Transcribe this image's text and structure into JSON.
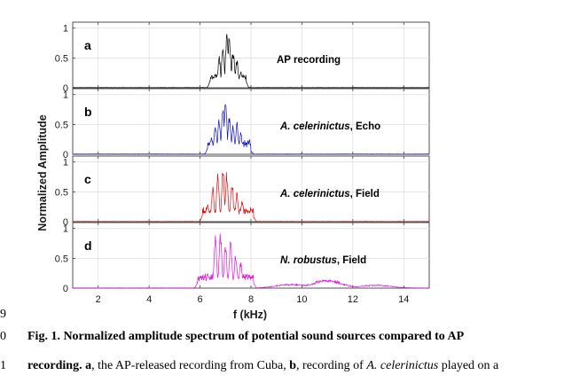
{
  "chart_data": {
    "type": "line",
    "ylabel": "Normalized Amplitude",
    "xlabel": "f (kHz)",
    "xlim": [
      1,
      15
    ],
    "ylim": [
      0,
      1.1
    ],
    "x_ticks": [
      "2",
      "4",
      "6",
      "8",
      "10",
      "12",
      "14"
    ],
    "y_ticks": [
      "0",
      "0.5",
      "1"
    ],
    "grid": true,
    "panels": [
      {
        "letter": "a",
        "label_italic": "",
        "label_rest": "AP recording",
        "color": "#000000",
        "peaks": [
          {
            "x": 6.4,
            "y": 0.12
          },
          {
            "x": 6.6,
            "y": 0.25
          },
          {
            "x": 6.75,
            "y": 0.55
          },
          {
            "x": 6.9,
            "y": 0.7
          },
          {
            "x": 7.05,
            "y": 0.93
          },
          {
            "x": 7.15,
            "y": 1.0
          },
          {
            "x": 7.3,
            "y": 0.68
          },
          {
            "x": 7.45,
            "y": 0.5
          },
          {
            "x": 7.6,
            "y": 0.28
          },
          {
            "x": 7.8,
            "y": 0.12
          }
        ]
      },
      {
        "letter": "b",
        "label_italic": "A. celerinictus",
        "label_rest": ", Echo",
        "color": "#1010c8",
        "peaks": [
          {
            "x": 6.3,
            "y": 0.1
          },
          {
            "x": 6.45,
            "y": 0.3
          },
          {
            "x": 6.6,
            "y": 0.48
          },
          {
            "x": 6.75,
            "y": 0.62
          },
          {
            "x": 6.9,
            "y": 0.85
          },
          {
            "x": 7.0,
            "y": 1.0
          },
          {
            "x": 7.15,
            "y": 0.7
          },
          {
            "x": 7.3,
            "y": 0.52
          },
          {
            "x": 7.45,
            "y": 0.55
          },
          {
            "x": 7.6,
            "y": 0.38
          },
          {
            "x": 7.8,
            "y": 0.16
          },
          {
            "x": 8.0,
            "y": 0.05
          }
        ]
      },
      {
        "letter": "c",
        "label_italic": "A. celerinictus",
        "label_rest": ", Field",
        "color": "#e01010",
        "peaks": [
          {
            "x": 6.1,
            "y": 0.1
          },
          {
            "x": 6.3,
            "y": 0.3
          },
          {
            "x": 6.5,
            "y": 0.6
          },
          {
            "x": 6.7,
            "y": 0.82
          },
          {
            "x": 6.9,
            "y": 0.97
          },
          {
            "x": 7.05,
            "y": 0.9
          },
          {
            "x": 7.25,
            "y": 0.72
          },
          {
            "x": 7.45,
            "y": 0.52
          },
          {
            "x": 7.65,
            "y": 0.36
          },
          {
            "x": 7.85,
            "y": 0.2
          },
          {
            "x": 8.1,
            "y": 0.08
          }
        ]
      },
      {
        "letter": "d",
        "label_italic": "N. robustus",
        "label_rest": ", Field",
        "color": "#e010e0",
        "peaks": [
          {
            "x": 5.9,
            "y": 0.1
          },
          {
            "x": 6.3,
            "y": 0.25
          },
          {
            "x": 6.6,
            "y": 0.95
          },
          {
            "x": 6.8,
            "y": 0.98
          },
          {
            "x": 7.0,
            "y": 0.78
          },
          {
            "x": 7.2,
            "y": 0.85
          },
          {
            "x": 7.4,
            "y": 0.6
          },
          {
            "x": 7.6,
            "y": 0.45
          },
          {
            "x": 7.8,
            "y": 0.22
          },
          {
            "x": 8.1,
            "y": 0.08
          }
        ],
        "broad": [
          {
            "x": 9.6,
            "y": 0.08
          },
          {
            "x": 11.0,
            "y": 0.16
          },
          {
            "x": 12.9,
            "y": 0.06
          }
        ]
      }
    ]
  },
  "margin_numbers": [
    "9",
    "0",
    "1"
  ],
  "caption": {
    "line1": "Fig. 1. Normalized amplitude spectrum of potential sound sources compared to AP",
    "l2_bold1": "recording.",
    "l2_a": "a",
    "l2_t1": ", the AP-released recording from Cuba, ",
    "l2_b": "b",
    "l2_t2": ", recording of ",
    "l2_species": "A. celerinictus",
    "l2_t3": " played on a"
  }
}
